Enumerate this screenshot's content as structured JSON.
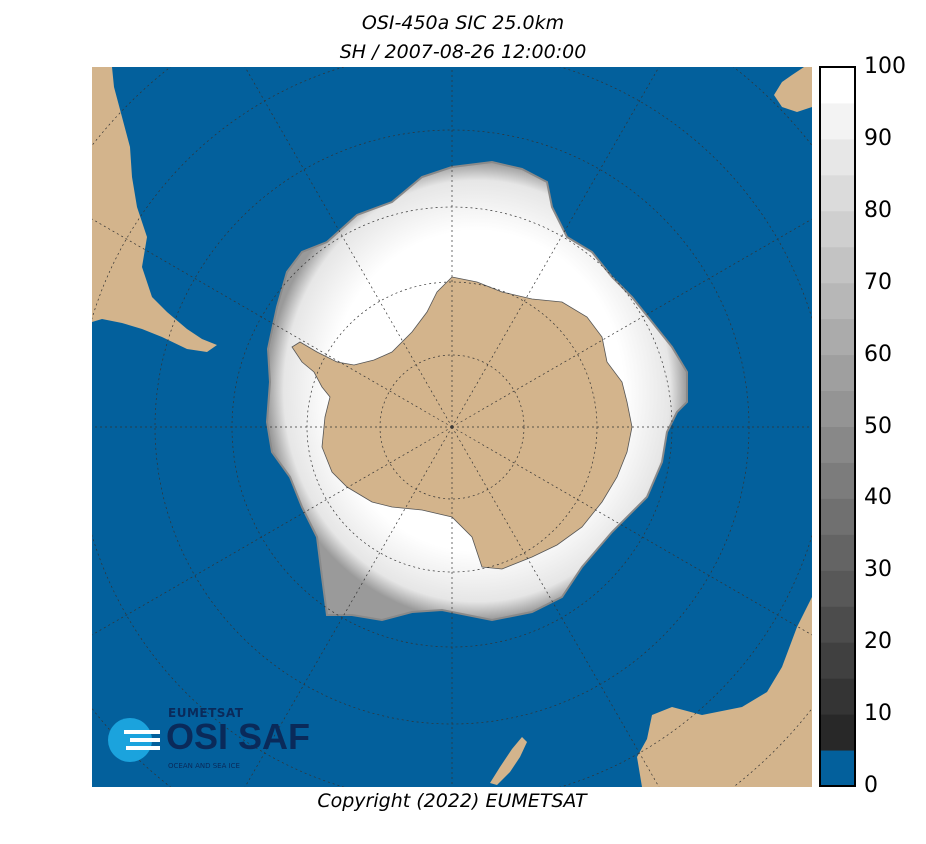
{
  "title": "OSI-450a SIC 25.0km",
  "subtitle": "SH / 2007-08-26 12:00:00",
  "copyright": "Copyright (2022)  EUMETSAT",
  "colors": {
    "ocean": "#03609c",
    "land": "#d3b48c",
    "ice_full": "#ffffff",
    "grid": "#333333"
  },
  "colorbar": {
    "min": 0,
    "max": 100,
    "ticks": [
      "100",
      "90",
      "80",
      "70",
      "60",
      "50",
      "40",
      "30",
      "20",
      "10",
      "0"
    ],
    "lowest_bin_color": "#03609c",
    "bin_width": 5
  },
  "logo": {
    "org": "EUMETSAT",
    "name": "OSI SAF",
    "tagline": "OCEAN AND SEA ICE"
  }
}
